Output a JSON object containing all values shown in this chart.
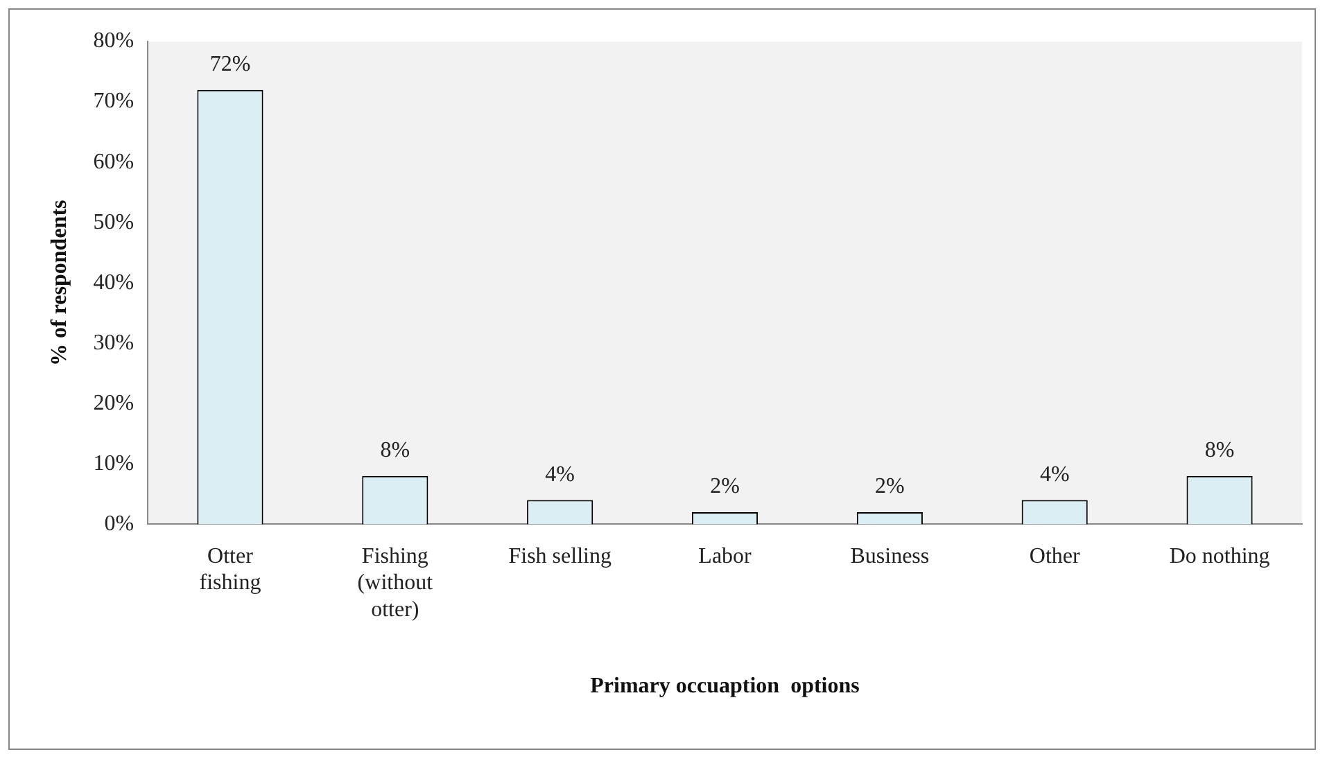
{
  "chart_data": {
    "type": "bar",
    "xlabel": "Primary occuaption  options",
    "ylabel": "% of respondents",
    "categories": [
      "Otter fishing",
      "Fishing (without otter)",
      "Fish selling",
      "Labor",
      "Business",
      "Other",
      "Do nothing"
    ],
    "values": [
      72,
      8,
      4,
      2,
      2,
      4,
      8
    ],
    "value_labels": [
      "72%",
      "8%",
      "4%",
      "2%",
      "2%",
      "4%",
      "8%"
    ],
    "color": "#daeef3",
    "ylim": [
      0,
      80
    ],
    "yticks": [
      {
        "value": 0,
        "label": "0%"
      },
      {
        "value": 10,
        "label": "10%"
      },
      {
        "value": 20,
        "label": "20%"
      },
      {
        "value": 30,
        "label": "30%"
      },
      {
        "value": 40,
        "label": "40%"
      },
      {
        "value": 50,
        "label": "50%"
      },
      {
        "value": 60,
        "label": "60%"
      },
      {
        "value": 70,
        "label": "70%"
      },
      {
        "value": 80,
        "label": "80%"
      }
    ],
    "grid": false,
    "legend": false
  }
}
